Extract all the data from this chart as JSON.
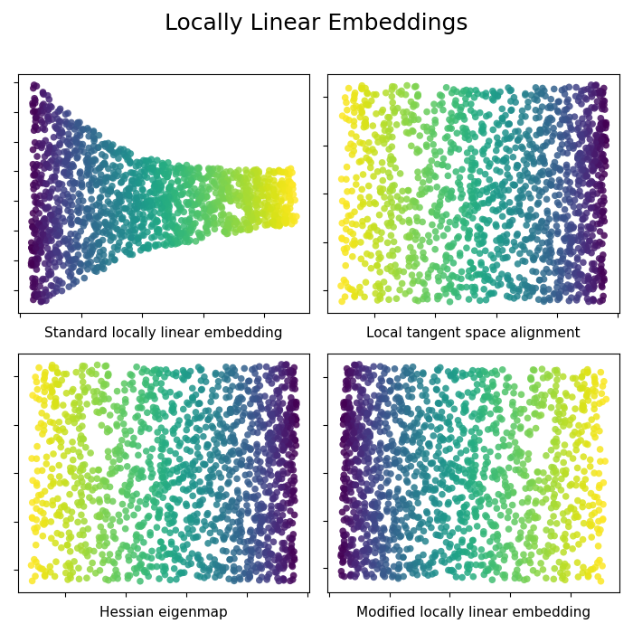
{
  "title": "Locally Linear Embeddings",
  "title_fontsize": 18,
  "subplot_titles": [
    "Standard locally linear embedding",
    "Local tangent space alignment",
    "Hessian eigenmap",
    "Modified locally linear embedding"
  ],
  "subplot_title_fontsize": 11,
  "n_samples": 1500,
  "n_neighbors": 12,
  "random_state": 42,
  "marker_size": 30,
  "alpha": 0.85,
  "cmap": "viridis",
  "figsize": [
    7.0,
    7.0
  ],
  "dpi": 100
}
